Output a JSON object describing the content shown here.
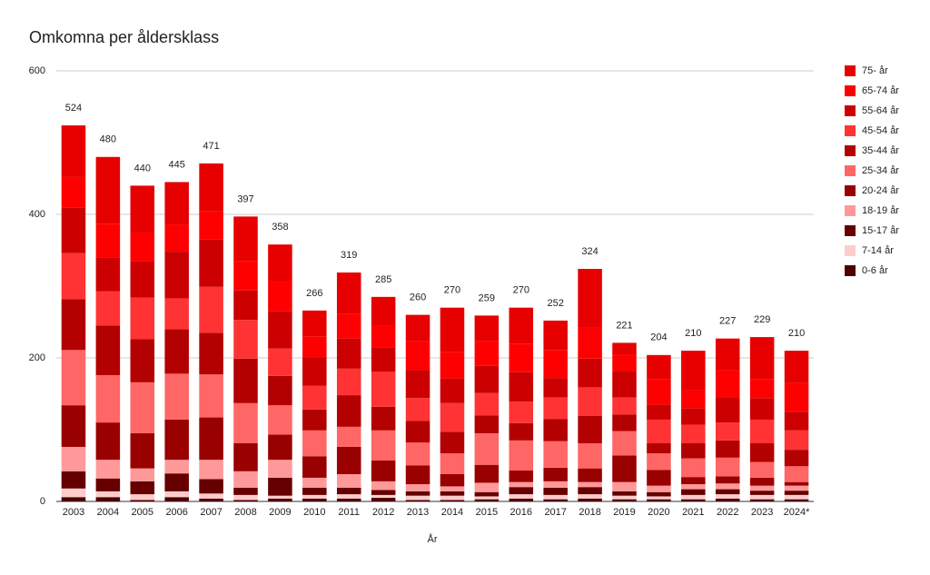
{
  "chart_data": {
    "type": "stacked-bar",
    "title": "Omkomna per åldersklass",
    "x_label": "År",
    "categories": [
      "2003",
      "2004",
      "2005",
      "2006",
      "2007",
      "2008",
      "2009",
      "2010",
      "2011",
      "2012",
      "2013",
      "2014",
      "2015",
      "2016",
      "2017",
      "2018",
      "2019",
      "2020",
      "2021",
      "2022",
      "2023",
      "2024*"
    ],
    "totals": [
      524,
      480,
      440,
      445,
      471,
      397,
      358,
      266,
      319,
      285,
      260,
      270,
      259,
      270,
      252,
      324,
      221,
      204,
      210,
      227,
      229,
      210
    ],
    "ylim": [
      0,
      600
    ],
    "yticks": [
      0,
      200,
      400,
      600
    ],
    "grid": true,
    "legend": "right",
    "series": [
      {
        "name": "0-6 år",
        "color": "#4d0000",
        "values": [
          6,
          6,
          2,
          6,
          4,
          2,
          4,
          4,
          4,
          5,
          2,
          2,
          3,
          4,
          3,
          4,
          3,
          3,
          3,
          4,
          3,
          3
        ]
      },
      {
        "name": "7-14 år",
        "color": "#ffcccc",
        "values": [
          12,
          8,
          8,
          8,
          7,
          7,
          4,
          5,
          6,
          4,
          6,
          6,
          4,
          6,
          6,
          6,
          5,
          4,
          6,
          6,
          6,
          6
        ]
      },
      {
        "name": "15-17 år",
        "color": "#660000",
        "values": [
          24,
          18,
          18,
          25,
          20,
          10,
          25,
          10,
          9,
          7,
          6,
          6,
          6,
          10,
          10,
          10,
          6,
          6,
          8,
          7,
          6,
          6
        ]
      },
      {
        "name": "18-19 år",
        "color": "#ff9999",
        "values": [
          34,
          26,
          18,
          19,
          27,
          23,
          25,
          14,
          19,
          12,
          10,
          7,
          13,
          7,
          9,
          7,
          13,
          9,
          7,
          8,
          7,
          7
        ]
      },
      {
        "name": "20-24 år",
        "color": "#990000",
        "values": [
          58,
          52,
          49,
          56,
          59,
          39,
          35,
          30,
          38,
          29,
          26,
          17,
          25,
          16,
          19,
          19,
          37,
          22,
          10,
          10,
          11,
          5
        ]
      },
      {
        "name": "25-34 år",
        "color": "#ff6666",
        "values": [
          77,
          66,
          71,
          64,
          60,
          56,
          41,
          36,
          28,
          42,
          32,
          29,
          44,
          42,
          37,
          35,
          34,
          23,
          26,
          26,
          22,
          22
        ]
      },
      {
        "name": "35-44 år",
        "color": "#b30000",
        "values": [
          71,
          69,
          60,
          62,
          58,
          62,
          41,
          29,
          44,
          33,
          30,
          30,
          25,
          24,
          31,
          38,
          23,
          14,
          21,
          24,
          26,
          23
        ]
      },
      {
        "name": "45-54 år",
        "color": "#ff3333",
        "values": [
          64,
          48,
          58,
          43,
          64,
          54,
          38,
          33,
          37,
          49,
          32,
          40,
          31,
          30,
          30,
          40,
          24,
          33,
          26,
          25,
          33,
          27
        ]
      },
      {
        "name": "55-64 år",
        "color": "#cc0000",
        "values": [
          63,
          47,
          51,
          65,
          66,
          41,
          52,
          39,
          42,
          33,
          39,
          34,
          38,
          41,
          27,
          40,
          36,
          21,
          23,
          35,
          30,
          26
        ]
      },
      {
        "name": "65-74 år",
        "color": "#ff0000",
        "values": [
          43,
          47,
          39,
          38,
          39,
          41,
          42,
          30,
          34,
          31,
          40,
          37,
          34,
          40,
          39,
          44,
          24,
          35,
          25,
          38,
          26,
          40
        ]
      },
      {
        "name": "75- år",
        "color": "#e60000",
        "values": [
          72,
          93,
          66,
          59,
          67,
          62,
          51,
          36,
          58,
          40,
          37,
          62,
          36,
          50,
          41,
          81,
          16,
          34,
          55,
          44,
          59,
          45
        ]
      }
    ]
  }
}
